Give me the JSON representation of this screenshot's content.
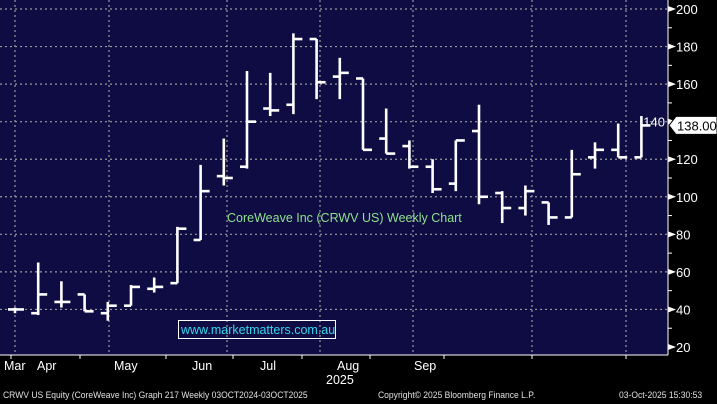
{
  "chart_data": {
    "type": "ohlc",
    "title": "CoreWeave Inc (CRWV US) Weekly Chart",
    "watermark": "www.marketmatters.com.au",
    "ylim": [
      20,
      200
    ],
    "yticks": [
      20,
      40,
      60,
      80,
      100,
      120,
      140,
      160,
      180,
      200
    ],
    "last_price_label": "138.00",
    "last_price": 138,
    "xlabel": "2025",
    "months": [
      "Mar",
      "Apr",
      "May",
      "Jun",
      "Jul",
      "Aug",
      "Sep"
    ],
    "bars": [
      {
        "o": 40,
        "h": 41,
        "l": 38,
        "c": 40
      },
      {
        "o": 38,
        "h": 65,
        "l": 37,
        "c": 48
      },
      {
        "o": 44,
        "h": 55,
        "l": 41,
        "c": 44
      },
      {
        "o": 48,
        "h": 48,
        "l": 39,
        "c": 39
      },
      {
        "o": 38,
        "h": 44,
        "l": 34,
        "c": 42
      },
      {
        "o": 42,
        "h": 53,
        "l": 42,
        "c": 52
      },
      {
        "o": 51,
        "h": 57,
        "l": 49,
        "c": 52
      },
      {
        "o": 54,
        "h": 84,
        "l": 54,
        "c": 83
      },
      {
        "o": 77,
        "h": 117,
        "l": 77,
        "c": 103
      },
      {
        "o": 111,
        "h": 131,
        "l": 106,
        "c": 110
      },
      {
        "o": 116,
        "h": 167,
        "l": 115,
        "c": 140
      },
      {
        "o": 147,
        "h": 166,
        "l": 143,
        "c": 146
      },
      {
        "o": 149,
        "h": 187,
        "l": 144,
        "c": 184
      },
      {
        "o": 184,
        "h": 184,
        "l": 152,
        "c": 161
      },
      {
        "o": 164,
        "h": 174,
        "l": 152,
        "c": 166
      },
      {
        "o": 163,
        "h": 163,
        "l": 125,
        "c": 125
      },
      {
        "o": 131,
        "h": 147,
        "l": 123,
        "c": 123
      },
      {
        "o": 127,
        "h": 130,
        "l": 115,
        "c": 116
      },
      {
        "o": 116,
        "h": 120,
        "l": 102,
        "c": 104
      },
      {
        "o": 107,
        "h": 130,
        "l": 103,
        "c": 130
      },
      {
        "o": 135,
        "h": 149,
        "l": 96,
        "c": 100
      },
      {
        "o": 102,
        "h": 103,
        "l": 86,
        "c": 94
      },
      {
        "o": 94,
        "h": 106,
        "l": 90,
        "c": 103
      },
      {
        "o": 97,
        "h": 97,
        "l": 85,
        "c": 89
      },
      {
        "o": 89,
        "h": 125,
        "l": 89,
        "c": 112
      },
      {
        "o": 121,
        "h": 129,
        "l": 115,
        "c": 125
      },
      {
        "o": 125,
        "h": 139,
        "l": 121,
        "c": 121
      },
      {
        "o": 121,
        "h": 143,
        "l": 121,
        "c": 138
      }
    ]
  },
  "footer": {
    "left": "CRWV US Equity (CoreWeave Inc) Graph 217 Weekly 03OCT2024-03OCT2025",
    "center": "Copyright© 2025 Bloomberg Finance L.P.",
    "right": "03-Oct-2025 15:30:53"
  },
  "colors": {
    "plot_bg": "#0e0c42",
    "bars": "#ffffff",
    "title": "#8ee08e",
    "watermark": "#33d6f0"
  }
}
